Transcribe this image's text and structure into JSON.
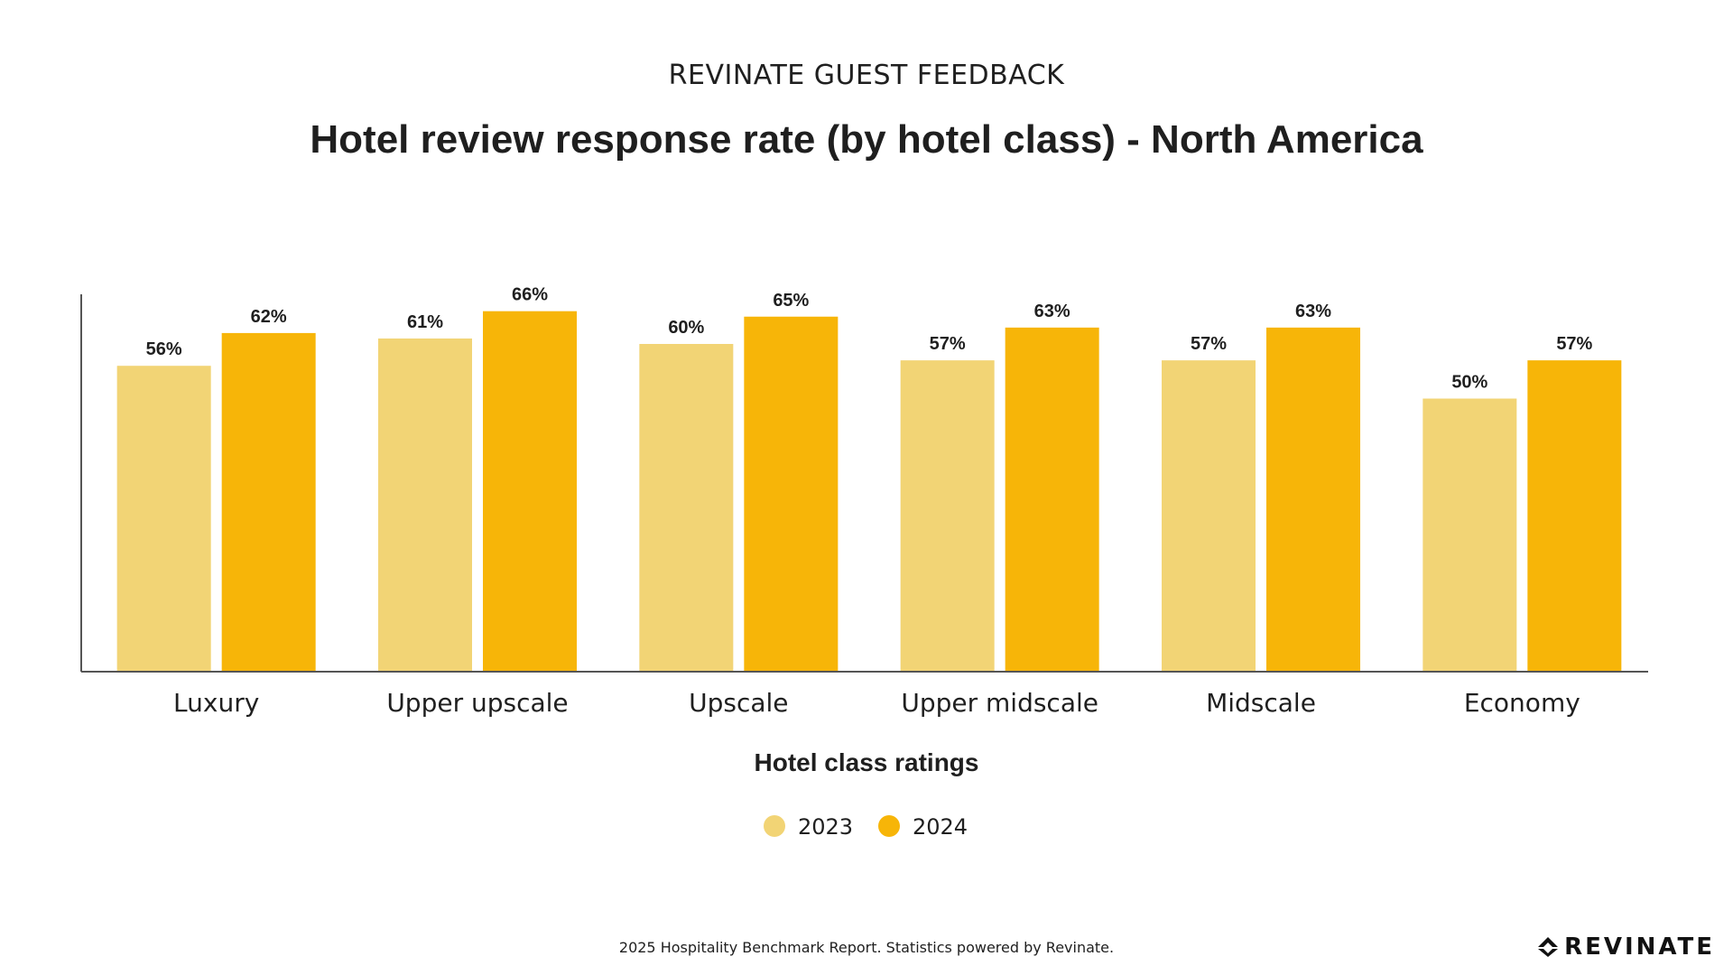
{
  "header": {
    "supertitle": "REVINATE GUEST FEEDBACK",
    "title": "Hotel review response rate (by hotel class) - North America"
  },
  "chart_data": {
    "type": "bar",
    "categories": [
      "Luxury",
      "Upper upscale",
      "Upscale",
      "Upper midscale",
      "Midscale",
      "Economy"
    ],
    "series": [
      {
        "name": "2023",
        "values": [
          56,
          61,
          60,
          57,
          57,
          50
        ],
        "color": "#F2D475"
      },
      {
        "name": "2024",
        "values": [
          62,
          66,
          65,
          63,
          63,
          57
        ],
        "color": "#F7B508"
      }
    ],
    "value_labels": {
      "2023": [
        "56%",
        "61%",
        "60%",
        "57%",
        "57%",
        "50%"
      ],
      "2024": [
        "62%",
        "66%",
        "65%",
        "63%",
        "63%",
        "57%"
      ]
    },
    "xlabel": "Hotel class ratings",
    "ylabel": "",
    "ylim": [
      0,
      80
    ],
    "grid": false,
    "legend": "bottom-center"
  },
  "footer": {
    "text": "2025 Hospitality Benchmark Report. Statistics powered by Revinate."
  },
  "logo": {
    "text": "REVINATE"
  }
}
